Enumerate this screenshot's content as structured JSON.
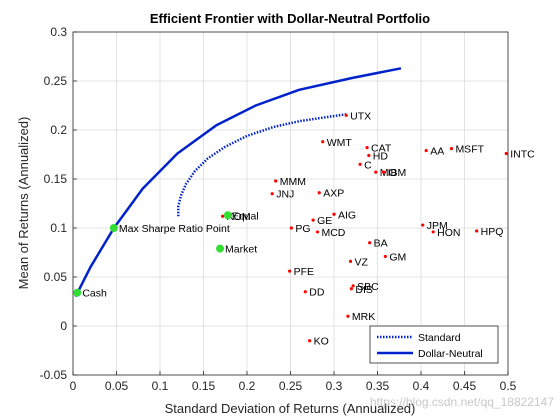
{
  "chart_data": {
    "type": "scatter",
    "title": "Efficient Frontier with Dollar-Neutral Portfolio",
    "xlabel": "Standard Deviation of Returns (Annualized)",
    "ylabel": "Mean of Returns (Annualized)",
    "xlim": [
      0,
      0.5
    ],
    "ylim": [
      -0.05,
      0.3
    ],
    "xticks": [
      "0",
      "0.05",
      "0.1",
      "0.15",
      "0.2",
      "0.25",
      "0.3",
      "0.35",
      "0.4",
      "0.45",
      "0.5"
    ],
    "yticks": [
      "-0.05",
      "0",
      "0.05",
      "0.1",
      "0.15",
      "0.2",
      "0.25",
      "0.3"
    ],
    "grid": true,
    "legend_position": "bottom-right",
    "colors": {
      "asset_marker": "#ff0000",
      "highlight_marker": "#33dd33",
      "frontier": "#0022cc"
    },
    "assets": [
      {
        "name": "UTX",
        "x": 0.314,
        "y": 0.215
      },
      {
        "name": "WMT",
        "x": 0.287,
        "y": 0.188
      },
      {
        "name": "CAT",
        "x": 0.338,
        "y": 0.182
      },
      {
        "name": "AA",
        "x": 0.406,
        "y": 0.179
      },
      {
        "name": "MSFT",
        "x": 0.435,
        "y": 0.181
      },
      {
        "name": "INTC",
        "x": 0.498,
        "y": 0.176
      },
      {
        "name": "HD",
        "x": 0.34,
        "y": 0.174
      },
      {
        "name": "C",
        "x": 0.33,
        "y": 0.165
      },
      {
        "name": "MO",
        "x": 0.348,
        "y": 0.157
      },
      {
        "name": "IBM",
        "x": 0.357,
        "y": 0.157
      },
      {
        "name": "MMM",
        "x": 0.233,
        "y": 0.148
      },
      {
        "name": "JNJ",
        "x": 0.229,
        "y": 0.135
      },
      {
        "name": "AXP",
        "x": 0.283,
        "y": 0.136
      },
      {
        "name": "XOM",
        "x": 0.172,
        "y": 0.112
      },
      {
        "name": "Equal",
        "x": 0.178,
        "y": 0.113
      },
      {
        "name": "AIG",
        "x": 0.3,
        "y": 0.114
      },
      {
        "name": "GE",
        "x": 0.276,
        "y": 0.108
      },
      {
        "name": "PG",
        "x": 0.251,
        "y": 0.1
      },
      {
        "name": "MCD",
        "x": 0.281,
        "y": 0.096
      },
      {
        "name": "JPM",
        "x": 0.402,
        "y": 0.103
      },
      {
        "name": "HON",
        "x": 0.414,
        "y": 0.096
      },
      {
        "name": "HPQ",
        "x": 0.464,
        "y": 0.097
      },
      {
        "name": "BA",
        "x": 0.341,
        "y": 0.085
      },
      {
        "name": "GM",
        "x": 0.359,
        "y": 0.071
      },
      {
        "name": "VZ",
        "x": 0.319,
        "y": 0.066
      },
      {
        "name": "PFE",
        "x": 0.249,
        "y": 0.056
      },
      {
        "name": "SBC",
        "x": 0.322,
        "y": 0.041
      },
      {
        "name": "DIS",
        "x": 0.32,
        "y": 0.038
      },
      {
        "name": "DD",
        "x": 0.267,
        "y": 0.035
      },
      {
        "name": "MRK",
        "x": 0.316,
        "y": 0.01
      },
      {
        "name": "KO",
        "x": 0.272,
        "y": -0.015
      }
    ],
    "highlights": [
      {
        "name": "Cash",
        "x": 0.005,
        "y": 0.034
      },
      {
        "name": "Max Sharpe Ratio Point",
        "x": 0.047,
        "y": 0.1
      },
      {
        "name": "Market",
        "x": 0.169,
        "y": 0.079
      },
      {
        "name": "",
        "x": 0.178,
        "y": 0.113
      }
    ],
    "series": [
      {
        "name": "Standard",
        "style": "dotted",
        "x": [
          0.121,
          0.121,
          0.124,
          0.13,
          0.14,
          0.155,
          0.175,
          0.2,
          0.23,
          0.26,
          0.29,
          0.314
        ],
        "y": [
          0.112,
          0.122,
          0.133,
          0.145,
          0.158,
          0.171,
          0.183,
          0.194,
          0.203,
          0.209,
          0.213,
          0.216
        ]
      },
      {
        "name": "Dollar-Neutral",
        "style": "solid",
        "x": [
          0.003,
          0.02,
          0.047,
          0.08,
          0.12,
          0.165,
          0.21,
          0.26,
          0.32,
          0.377
        ],
        "y": [
          0.03,
          0.06,
          0.1,
          0.14,
          0.176,
          0.205,
          0.225,
          0.241,
          0.253,
          0.263
        ]
      }
    ]
  },
  "watermark": "https://blog.csdn.net/qq_18822147"
}
